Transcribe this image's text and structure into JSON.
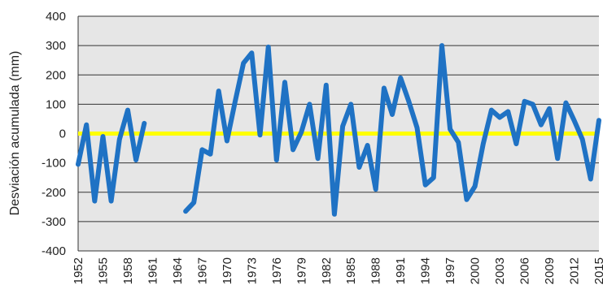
{
  "chart_data": {
    "type": "line",
    "title": "",
    "xlabel": "",
    "ylabel": "Desviación acumulada (mm)",
    "ylim": [
      -400,
      400
    ],
    "xlim": [
      1952,
      2015
    ],
    "yticks": [
      400,
      300,
      200,
      100,
      0,
      -100,
      -200,
      -300,
      -400
    ],
    "xticks": [
      1952,
      1955,
      1958,
      1961,
      1964,
      1967,
      1970,
      1973,
      1976,
      1979,
      1982,
      1985,
      1988,
      1991,
      1994,
      1997,
      2000,
      2003,
      2006,
      2009,
      2012,
      2015
    ],
    "grid": "horizontal",
    "legend": "none",
    "colors": {
      "series": "#1f72c4",
      "zero_line": "#ffff00",
      "plot_background": "#e6e6e6",
      "grid": "#333333"
    },
    "series": [
      {
        "x": [
          1952,
          1953,
          1954,
          1955,
          1956,
          1957,
          1958,
          1959,
          1960,
          1961,
          1962,
          1963,
          1964,
          1965,
          1966,
          1967,
          1968,
          1969,
          1970,
          1971,
          1972,
          1973,
          1974,
          1975,
          1976,
          1977,
          1978,
          1979,
          1980,
          1981,
          1982,
          1983,
          1984,
          1985,
          1986,
          1987,
          1988,
          1989,
          1990,
          1991,
          1992,
          1993,
          1994,
          1995,
          1996,
          1997,
          1998,
          1999,
          2000,
          2001,
          2002,
          2003,
          2004,
          2005,
          2006,
          2007,
          2008,
          2009,
          2010,
          2011,
          2012,
          2013,
          2014,
          2015
        ],
        "values": [
          -105,
          30,
          -230,
          -10,
          -230,
          -20,
          80,
          -90,
          35,
          null,
          null,
          null,
          null,
          -265,
          -235,
          -55,
          -70,
          145,
          -25,
          110,
          240,
          275,
          -5,
          295,
          -90,
          175,
          -55,
          5,
          100,
          -85,
          165,
          -275,
          25,
          100,
          -115,
          -40,
          -190,
          155,
          65,
          190,
          110,
          20,
          -175,
          -150,
          300,
          15,
          -30,
          -225,
          -180,
          -35,
          80,
          55,
          75,
          -35,
          110,
          100,
          30,
          85,
          -85,
          105,
          45,
          -20,
          -155,
          45
        ]
      }
    ]
  }
}
